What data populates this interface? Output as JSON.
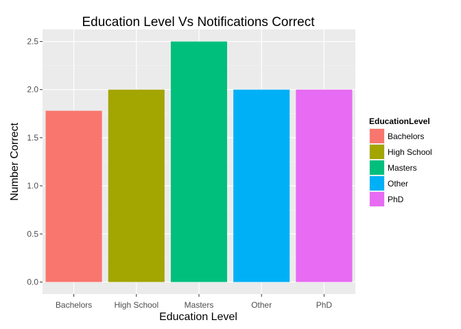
{
  "chart_data": {
    "type": "bar",
    "title": "Education Level Vs Notifications Correct",
    "xlabel": "Education Level",
    "ylabel": "Number Correct",
    "categories": [
      "Bachelors",
      "High School",
      "Masters",
      "Other",
      "PhD"
    ],
    "values": [
      1.78,
      2.0,
      2.5,
      2.0,
      2.0
    ],
    "colors": [
      "#f8766d",
      "#a3a500",
      "#00bf7d",
      "#00b0f6",
      "#e76bf3"
    ],
    "ylim": [
      -0.125,
      2.625
    ],
    "yticks": [
      0.0,
      0.5,
      1.0,
      1.5,
      2.0,
      2.5
    ],
    "ytick_labels": [
      "0.0",
      "0.5",
      "1.0",
      "1.5",
      "2.0",
      "2.5"
    ],
    "grid": true,
    "legend": {
      "title": "EducationLevel",
      "position": "right",
      "entries": [
        "Bachelors",
        "High School",
        "Masters",
        "Other",
        "PhD"
      ]
    }
  }
}
